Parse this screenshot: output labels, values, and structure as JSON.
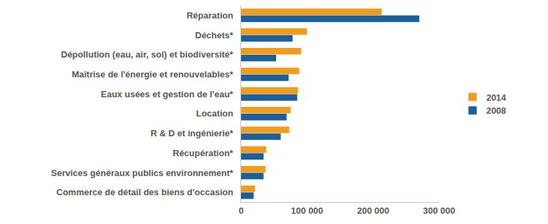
{
  "chart_data": {
    "type": "bar",
    "orientation": "horizontal",
    "categories": [
      "Réparation",
      "Déchets*",
      "Dépollution (eau, air, sol) et biodiversité*",
      "Maîtrise de l'énergie et renouvelables*",
      "Eaux usées et gestion de l'eau*",
      "Location",
      "R & D et ingénierie*",
      "Récupération*",
      "Services généraux publics environnement*",
      "Commerce de détail des biens d'occasion"
    ],
    "series": [
      {
        "name": "2014",
        "color": "#f39c1a",
        "values": [
          213000,
          100000,
          91000,
          88000,
          86000,
          75000,
          73000,
          38000,
          37000,
          21000
        ]
      },
      {
        "name": "2008",
        "color": "#1c5f9f",
        "values": [
          270000,
          78000,
          53000,
          72000,
          85000,
          69000,
          60000,
          34000,
          34000,
          19000
        ]
      }
    ],
    "xlim": [
      0,
      300000
    ],
    "xticks": [
      0,
      {
        "value": 100000,
        "label": "100 000"
      },
      {
        "value": 200000,
        "label": "200 000"
      },
      {
        "value": 300000,
        "label": "300 000"
      }
    ],
    "grid": false,
    "legend": "right"
  }
}
